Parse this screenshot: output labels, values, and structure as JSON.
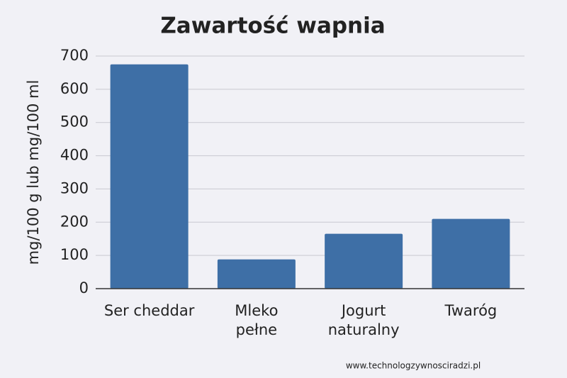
{
  "chart_data": {
    "type": "bar",
    "title": "Zawartość wapnia",
    "y_label": "mg/100 g lub mg/100 ml",
    "categories": [
      "Ser cheddar",
      "Mleko\npełne",
      "Jogurt\nnaturalny",
      "Twaróg"
    ],
    "values": [
      675,
      88,
      165,
      210
    ],
    "color": "#3e6fa6",
    "ylim": [
      0,
      700
    ],
    "yticks": [
      0,
      100,
      200,
      300,
      400,
      500,
      600,
      700
    ],
    "grid": true
  },
  "footer": "www.technologzywnosciradzi.pl"
}
